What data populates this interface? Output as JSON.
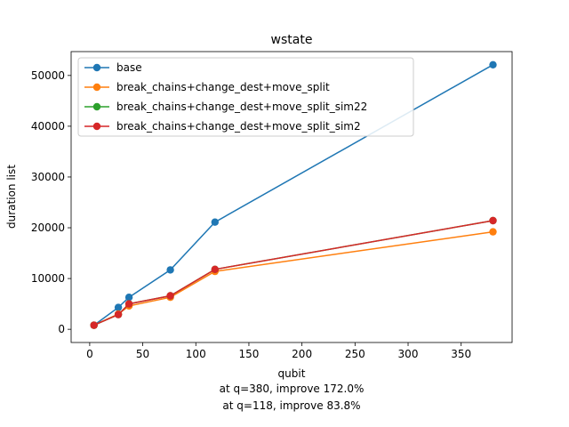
{
  "chart_data": {
    "type": "line",
    "title": "wstate",
    "xlabel": "qubit",
    "ylabel": "duration list",
    "xlim": [
      -17.5,
      398
    ],
    "ylim": [
      -2600,
      54700
    ],
    "x_ticks": [
      0,
      50,
      100,
      150,
      200,
      250,
      300,
      350
    ],
    "y_ticks": [
      0,
      10000,
      20000,
      30000,
      40000,
      50000
    ],
    "x_tick_labels": [
      "0",
      "50",
      "100",
      "150",
      "200",
      "250",
      "300",
      "350"
    ],
    "y_tick_labels": [
      "0",
      "10000",
      "20000",
      "30000",
      "40000",
      "50000"
    ],
    "legend_position": "upper-left",
    "grid": false,
    "series": [
      {
        "name": "base",
        "color": "#1f77b4",
        "x": [
          4,
          27,
          37,
          76,
          118,
          380
        ],
        "y": [
          800,
          4300,
          6300,
          11700,
          21100,
          52100
        ]
      },
      {
        "name": "break_chains+change_dest+move_split",
        "color": "#ff7f0e",
        "x": [
          4,
          27,
          37,
          76,
          118,
          380
        ],
        "y": [
          800,
          3000,
          4600,
          6300,
          11400,
          19200
        ]
      },
      {
        "name": "break_chains+change_dest+move_split_sim22",
        "color": "#2ca02c",
        "x": [
          4,
          27,
          37,
          76,
          118,
          380
        ],
        "y": [
          800,
          2900,
          5000,
          6600,
          11800,
          21400
        ]
      },
      {
        "name": "break_chains+change_dest+move_split_sim2",
        "color": "#d62728",
        "x": [
          4,
          27,
          37,
          76,
          118,
          380
        ],
        "y": [
          800,
          2900,
          5000,
          6600,
          11800,
          21400
        ]
      }
    ],
    "annotations": [
      "at q=380, improve 172.0%",
      "at q=118, improve 83.8%"
    ]
  }
}
